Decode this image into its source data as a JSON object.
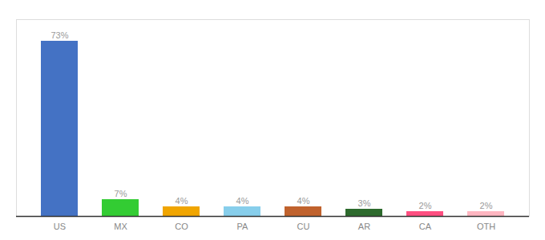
{
  "chart_data": {
    "type": "bar",
    "categories": [
      "US",
      "MX",
      "CO",
      "PA",
      "CU",
      "AR",
      "CA",
      "OTH"
    ],
    "values": [
      73,
      7,
      4,
      4,
      4,
      3,
      2,
      2
    ],
    "value_labels": [
      "73%",
      "7%",
      "4%",
      "4%",
      "4%",
      "3%",
      "2%",
      "2%"
    ],
    "colors": [
      "#4472C4",
      "#33CC33",
      "#F0A500",
      "#87CEEB",
      "#C0622D",
      "#2D6A2D",
      "#FF4F81",
      "#FFB6C1"
    ],
    "ylim": [
      0,
      82
    ],
    "data_labels": true,
    "tick_labels": "x",
    "grid": false
  }
}
